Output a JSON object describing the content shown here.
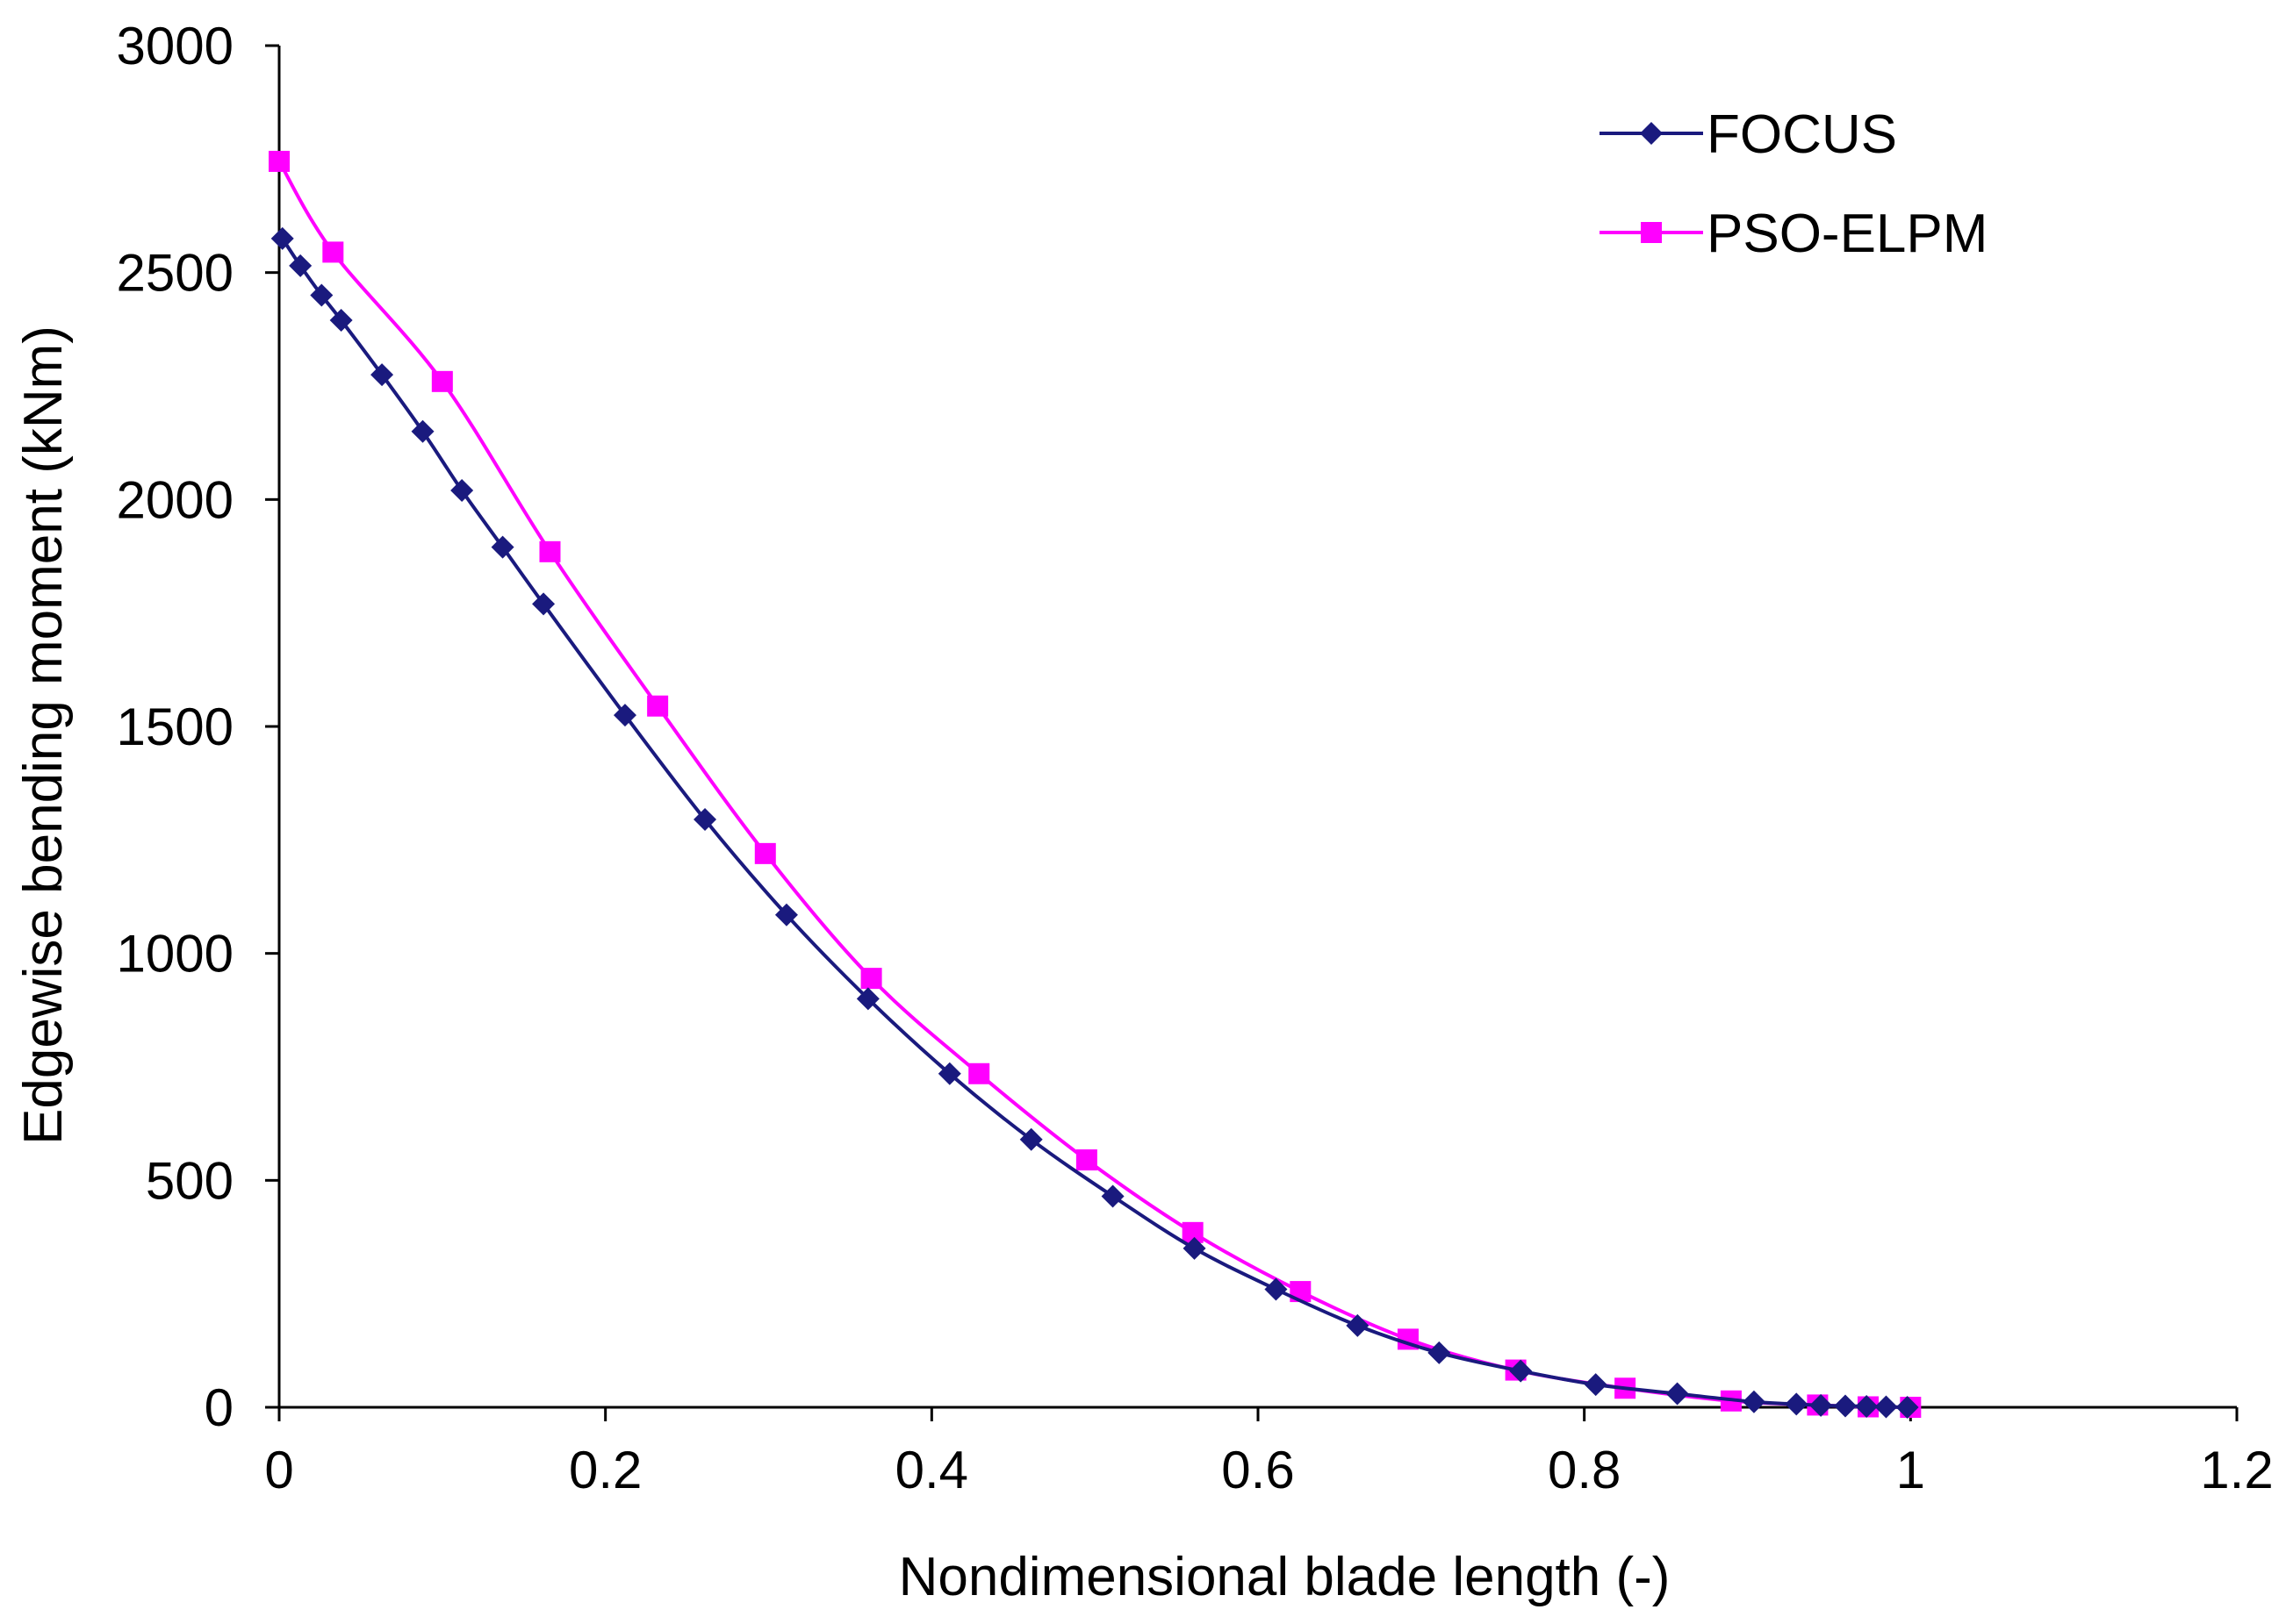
{
  "chart_data": {
    "type": "line",
    "title": "",
    "xlabel": "Nondimensional blade length (-)",
    "ylabel": "Edgewise bending moment (kNm)",
    "xlim": [
      0,
      1.2
    ],
    "ylim": [
      0,
      3000
    ],
    "x_ticks": [
      0,
      0.2,
      0.4,
      0.6,
      0.8,
      1,
      1.2
    ],
    "x_tick_labels": [
      "0",
      "0.2",
      "0.4",
      "0.6",
      "0.8",
      "1",
      "1.2"
    ],
    "y_ticks": [
      0,
      500,
      1000,
      1500,
      2000,
      2500,
      3000
    ],
    "y_tick_labels": [
      "0",
      "500",
      "1000",
      "1500",
      "2000",
      "2500",
      "3000"
    ],
    "grid": false,
    "legend_position": "top-right",
    "series": [
      {
        "name": "FOCUS",
        "color": "#1a1a7e",
        "marker": "diamond",
        "x": [
          0.002,
          0.013,
          0.026,
          0.038,
          0.063,
          0.088,
          0.112,
          0.137,
          0.162,
          0.212,
          0.261,
          0.311,
          0.361,
          0.411,
          0.461,
          0.511,
          0.561,
          0.611,
          0.661,
          0.711,
          0.761,
          0.807,
          0.857,
          0.904,
          0.93,
          0.945,
          0.96,
          0.973,
          0.985,
          0.998
        ],
        "y": [
          2575,
          2515,
          2450,
          2395,
          2275,
          2150,
          2020,
          1895,
          1770,
          1525,
          1295,
          1085,
          900,
          735,
          590,
          465,
          350,
          260,
          180,
          120,
          80,
          50,
          30,
          12,
          7,
          4,
          3,
          2,
          1,
          0
        ]
      },
      {
        "name": "PSO-ELPM",
        "color": "#ff00ff",
        "marker": "square",
        "x": [
          0.0,
          0.033,
          0.1,
          0.166,
          0.232,
          0.298,
          0.363,
          0.429,
          0.495,
          0.56,
          0.626,
          0.692,
          0.758,
          0.825,
          0.89,
          0.943,
          0.974,
          1.0
        ],
        "y": [
          2745,
          2545,
          2260,
          1885,
          1545,
          1220,
          945,
          735,
          545,
          385,
          255,
          150,
          82,
          42,
          14,
          5,
          1,
          0
        ]
      }
    ]
  }
}
